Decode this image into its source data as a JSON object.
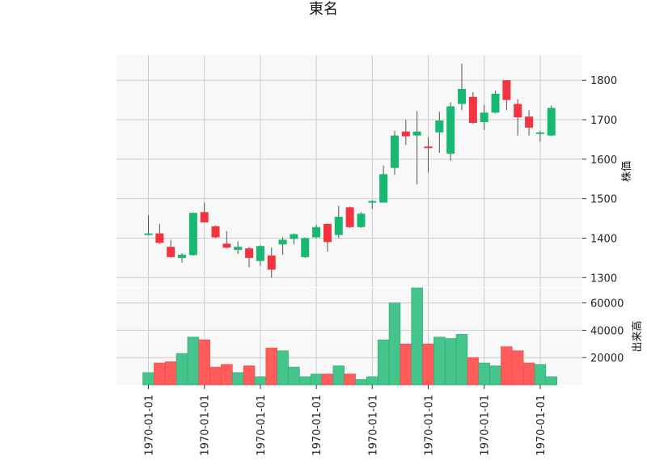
{
  "chart_data": {
    "type": "candlestick",
    "title": "東名",
    "x_tick_labels": [
      "1970-01-01",
      "1970-01-01",
      "1970-01-01",
      "1970-01-01",
      "1970-01-01",
      "1970-01-01",
      "1970-01-01",
      "1970-01-01"
    ],
    "price_panel": {
      "ylabel": "株価",
      "ylim": [
        1276,
        1864
      ],
      "yticks": [
        1300,
        1400,
        1500,
        1600,
        1700,
        1800
      ],
      "series": [
        {
          "o": 1410,
          "h": 1458,
          "l": 1408,
          "c": 1412
        },
        {
          "o": 1412,
          "h": 1436,
          "l": 1385,
          "c": 1388
        },
        {
          "o": 1378,
          "h": 1396,
          "l": 1350,
          "c": 1352
        },
        {
          "o": 1350,
          "h": 1362,
          "l": 1338,
          "c": 1358
        },
        {
          "o": 1357,
          "h": 1465,
          "l": 1356,
          "c": 1464
        },
        {
          "o": 1466,
          "h": 1490,
          "l": 1440,
          "c": 1440
        },
        {
          "o": 1430,
          "h": 1432,
          "l": 1400,
          "c": 1402
        },
        {
          "o": 1386,
          "h": 1418,
          "l": 1374,
          "c": 1376
        },
        {
          "o": 1370,
          "h": 1392,
          "l": 1360,
          "c": 1378
        },
        {
          "o": 1374,
          "h": 1378,
          "l": 1326,
          "c": 1350
        },
        {
          "o": 1342,
          "h": 1382,
          "l": 1330,
          "c": 1380
        },
        {
          "o": 1356,
          "h": 1376,
          "l": 1300,
          "c": 1320
        },
        {
          "o": 1384,
          "h": 1402,
          "l": 1358,
          "c": 1396
        },
        {
          "o": 1398,
          "h": 1412,
          "l": 1384,
          "c": 1410
        },
        {
          "o": 1352,
          "h": 1402,
          "l": 1350,
          "c": 1400
        },
        {
          "o": 1402,
          "h": 1434,
          "l": 1400,
          "c": 1428
        },
        {
          "o": 1436,
          "h": 1438,
          "l": 1366,
          "c": 1390
        },
        {
          "o": 1408,
          "h": 1482,
          "l": 1400,
          "c": 1454
        },
        {
          "o": 1478,
          "h": 1480,
          "l": 1426,
          "c": 1428
        },
        {
          "o": 1428,
          "h": 1466,
          "l": 1426,
          "c": 1462
        },
        {
          "o": 1490,
          "h": 1496,
          "l": 1474,
          "c": 1494
        },
        {
          "o": 1490,
          "h": 1584,
          "l": 1490,
          "c": 1562
        },
        {
          "o": 1578,
          "h": 1672,
          "l": 1560,
          "c": 1660
        },
        {
          "o": 1670,
          "h": 1700,
          "l": 1636,
          "c": 1658
        },
        {
          "o": 1660,
          "h": 1722,
          "l": 1536,
          "c": 1670
        },
        {
          "o": 1632,
          "h": 1656,
          "l": 1566,
          "c": 1630
        },
        {
          "o": 1668,
          "h": 1720,
          "l": 1616,
          "c": 1698
        },
        {
          "o": 1614,
          "h": 1744,
          "l": 1596,
          "c": 1734
        },
        {
          "o": 1740,
          "h": 1842,
          "l": 1724,
          "c": 1778
        },
        {
          "o": 1758,
          "h": 1770,
          "l": 1690,
          "c": 1692
        },
        {
          "o": 1694,
          "h": 1738,
          "l": 1674,
          "c": 1718
        },
        {
          "o": 1718,
          "h": 1774,
          "l": 1716,
          "c": 1766
        },
        {
          "o": 1800,
          "h": 1800,
          "l": 1724,
          "c": 1750
        },
        {
          "o": 1740,
          "h": 1752,
          "l": 1660,
          "c": 1706
        },
        {
          "o": 1708,
          "h": 1724,
          "l": 1660,
          "c": 1680
        },
        {
          "o": 1666,
          "h": 1672,
          "l": 1644,
          "c": 1668
        },
        {
          "o": 1660,
          "h": 1736,
          "l": 1658,
          "c": 1730
        }
      ]
    },
    "volume_panel": {
      "ylabel": "出来高",
      "ylim": [
        0,
        71000
      ],
      "yticks": [
        20000,
        40000,
        60000
      ],
      "values": [
        9000,
        16000,
        17000,
        23000,
        35000,
        33000,
        13000,
        15000,
        9000,
        14000,
        6000,
        27000,
        25000,
        13000,
        6000,
        8000,
        8000,
        14000,
        8000,
        4000,
        6000,
        33000,
        60000,
        30000,
        71000,
        30000,
        35000,
        34000,
        37000,
        20000,
        16000,
        14000,
        28000,
        25000,
        16000,
        15000,
        6000
      ]
    },
    "colors": {
      "up": "#17b86f",
      "down": "#f5333f",
      "up_volume": "#45c48c",
      "down_volume": "#ff5c5c",
      "wick": "#555555",
      "grid": "#cccccc",
      "panel_bg": "#f8f8f8"
    },
    "grid": true
  }
}
